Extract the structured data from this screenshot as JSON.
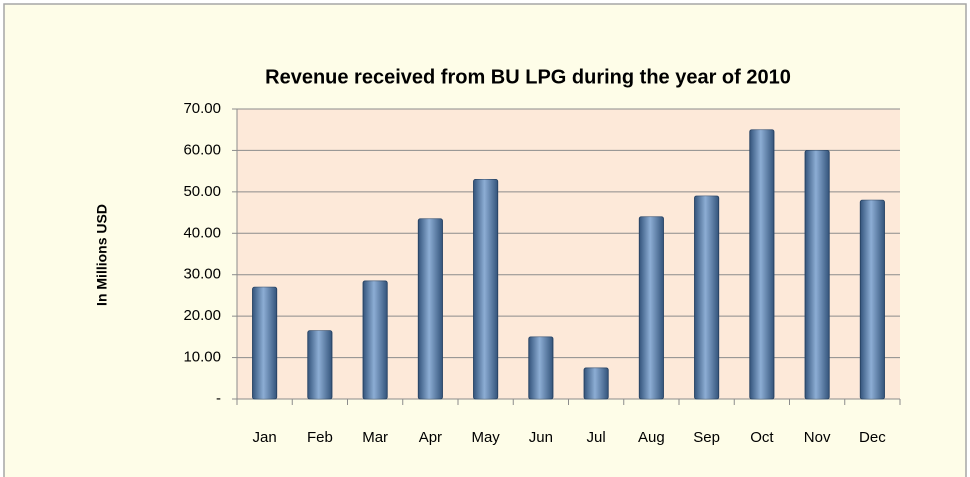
{
  "chart_data": {
    "type": "bar",
    "title": "Revenue received from BU LPG during the year of 2010",
    "y_label": "In Millions  USD",
    "categories": [
      "Jan",
      "Feb",
      "Mar",
      "Apr",
      "May",
      "Jun",
      "Jul",
      "Aug",
      "Sep",
      "Oct",
      "Nov",
      "Dec"
    ],
    "values": [
      27,
      16.5,
      28.5,
      43.5,
      53,
      15,
      7.5,
      44,
      49,
      65,
      60,
      48
    ],
    "color": "#4f81bd",
    "ylim": [
      0,
      70
    ],
    "yticks": [
      {
        "value": 0,
        "label": "-"
      },
      {
        "value": 10,
        "label": "10.00"
      },
      {
        "value": 20,
        "label": "20.00"
      },
      {
        "value": 30,
        "label": "30.00"
      },
      {
        "value": 40,
        "label": "40.00"
      },
      {
        "value": 50,
        "label": "50.00"
      },
      {
        "value": 60,
        "label": "60.00"
      },
      {
        "value": 70,
        "label": "70.00"
      }
    ],
    "grid": true
  }
}
